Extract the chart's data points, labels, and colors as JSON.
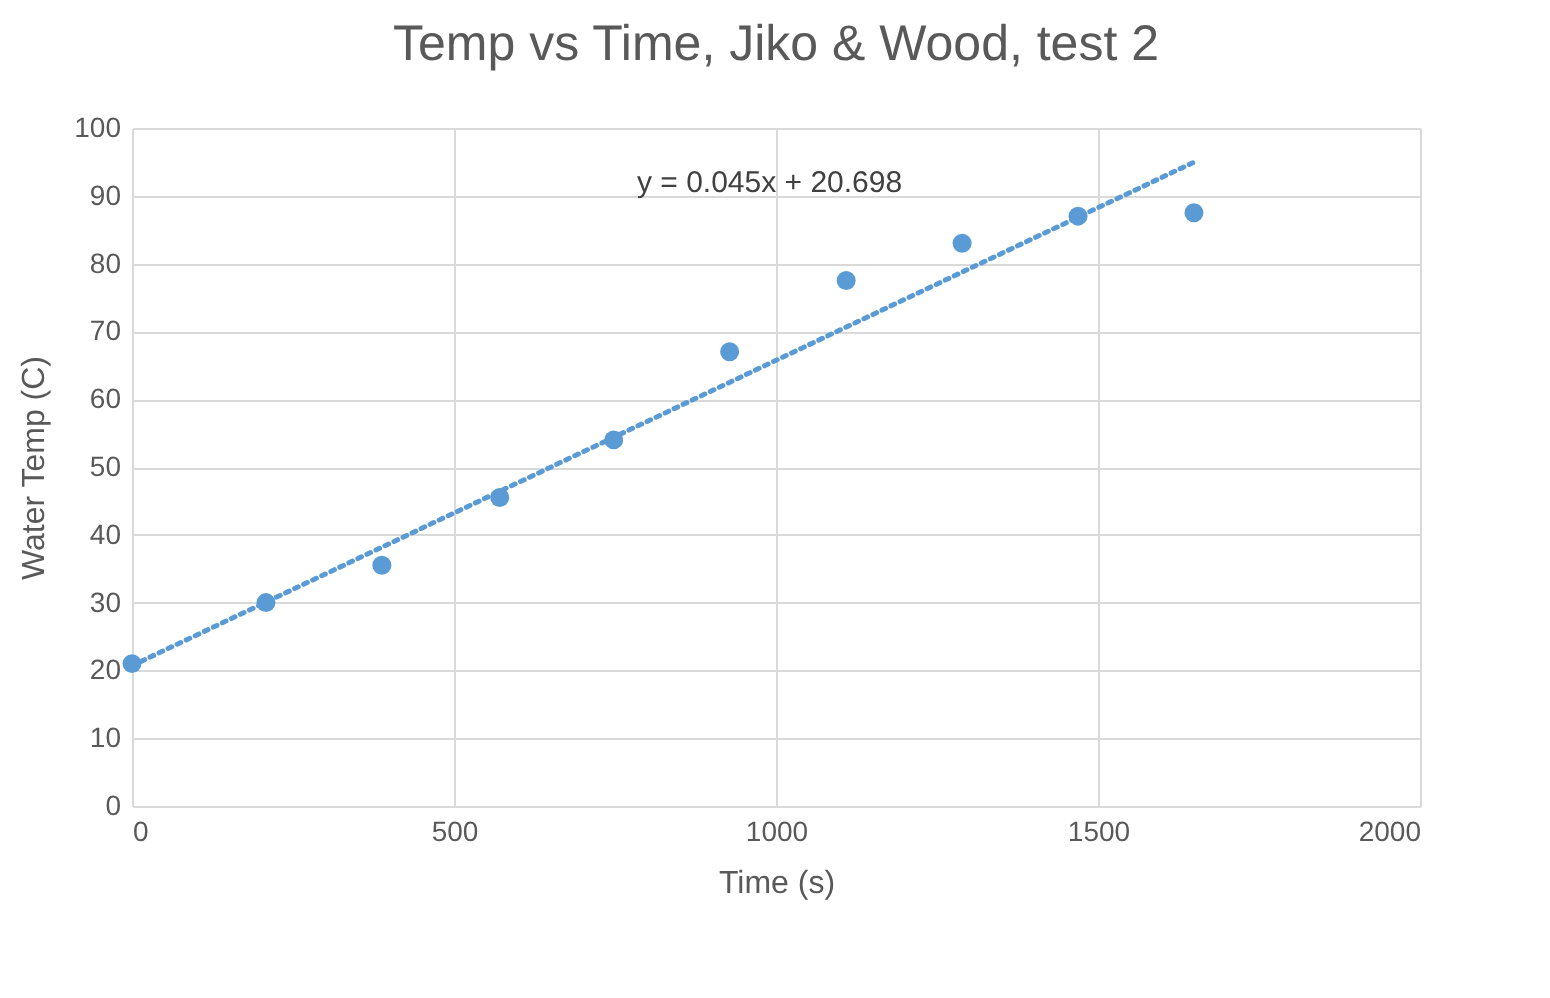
{
  "chart_data": {
    "type": "scatter",
    "title": "Temp vs Time, Jiko & Wood, test 2",
    "xlabel": "Time (s)",
    "ylabel": "Water Temp (C)",
    "xlim": [
      0,
      2000
    ],
    "xticks": [
      0,
      500,
      1000,
      1500,
      2000
    ],
    "ylim": [
      0,
      100
    ],
    "yticks": [
      0,
      10,
      20,
      30,
      40,
      50,
      60,
      70,
      80,
      90,
      100
    ],
    "grid": true,
    "series": [
      {
        "color": "#5b9bd5",
        "marker": "circle",
        "x": [
          0,
          208,
          388,
          571,
          748,
          928,
          1109,
          1289,
          1469,
          1649
        ],
        "values": [
          21,
          30,
          35.5,
          45.5,
          54,
          67,
          77.5,
          83,
          87,
          87.5
        ]
      },
      {
        "type": "line",
        "color": "#5b9bd5",
        "line_style": "dotted",
        "x": [
          0,
          1650
        ],
        "values": [
          20.7,
          95
        ]
      }
    ],
    "annotations": [
      "y = 0.045x + 20.698"
    ]
  }
}
